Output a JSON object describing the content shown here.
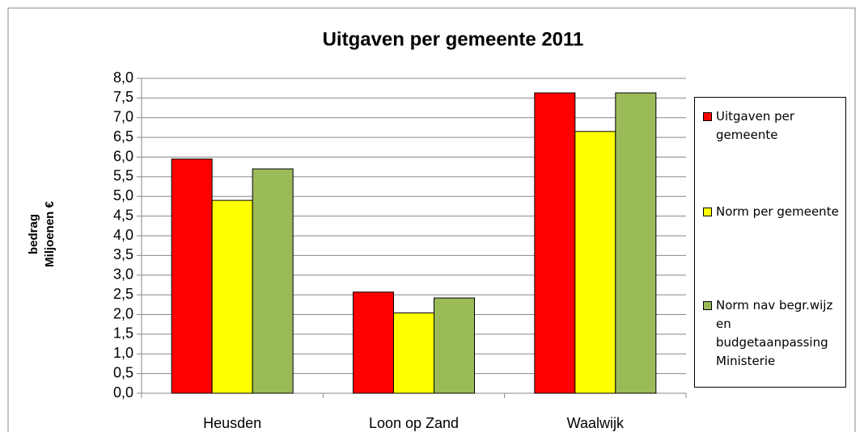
{
  "chart_data": {
    "type": "bar",
    "title": "Uitgaven per gemeente 2011",
    "y_label": [
      "bedrag",
      "Miljoenen €"
    ],
    "categories": [
      "Heusden",
      "Loon op Zand",
      "Waalwijk"
    ],
    "series": [
      {
        "name": "Uitgaven per gemeente",
        "color": "#ff0000",
        "values": [
          5.95,
          2.57,
          7.63
        ]
      },
      {
        "name": "Norm per gemeente",
        "color": "#ffff00",
        "values": [
          4.9,
          2.04,
          6.65
        ]
      },
      {
        "name": "Norm nav begr.wijz en budgetaanpassing Ministerie",
        "color": "#9bbb59",
        "values": [
          5.7,
          2.42,
          7.63
        ]
      }
    ],
    "ylim": [
      0,
      8
    ],
    "yticks": [
      {
        "value": 0,
        "label": "0,0"
      },
      {
        "value": 0.5,
        "label": "0,5"
      },
      {
        "value": 1,
        "label": "1,0"
      },
      {
        "value": 1.5,
        "label": "1,5"
      },
      {
        "value": 2,
        "label": "2,0"
      },
      {
        "value": 2.5,
        "label": "2,5"
      },
      {
        "value": 3,
        "label": "3,0"
      },
      {
        "value": 3.5,
        "label": "3,5"
      },
      {
        "value": 4,
        "label": "4,0"
      },
      {
        "value": 4.5,
        "label": "4,5"
      },
      {
        "value": 5,
        "label": "5,0"
      },
      {
        "value": 5.5,
        "label": "5,5"
      },
      {
        "value": 6,
        "label": "6,0"
      },
      {
        "value": 6.5,
        "label": "6,5"
      },
      {
        "value": 7,
        "label": "7,0"
      },
      {
        "value": 7.5,
        "label": "7,5"
      },
      {
        "value": 8,
        "label": "8,0"
      }
    ],
    "grid": true,
    "legend": "right"
  }
}
